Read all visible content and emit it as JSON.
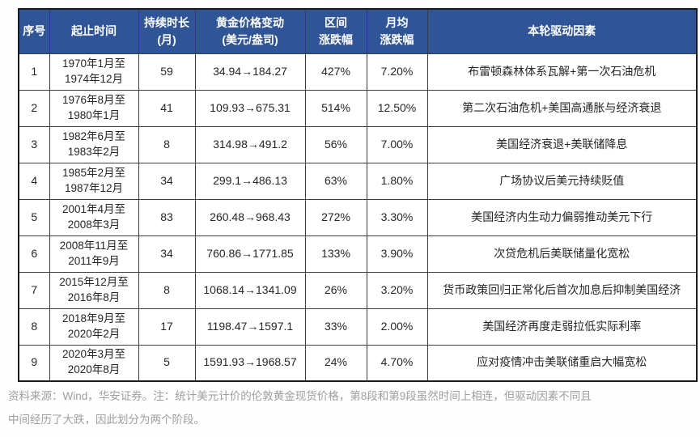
{
  "accent_color": "#2F5597",
  "border_color": "#3d3d3d",
  "table": {
    "headers": [
      {
        "id": "index",
        "label": "序号"
      },
      {
        "id": "period",
        "label": "起止时间"
      },
      {
        "id": "duration",
        "label": "持续时长\n(月)"
      },
      {
        "id": "price_change",
        "label": "黄金价格变动\n(美元/盎司)"
      },
      {
        "id": "interval_change",
        "label": "区间\n涨跌幅"
      },
      {
        "id": "monthly_change",
        "label": "月均\n涨跌幅"
      },
      {
        "id": "driver",
        "label": "本轮驱动因素"
      }
    ],
    "rows": [
      [
        "1",
        "1970年1月至\n1974年12月",
        "59",
        "34.94→184.27",
        "427%",
        "7.20%",
        "布雷顿森林体系瓦解+第一次石油危机"
      ],
      [
        "2",
        "1976年8月至\n1980年1月",
        "41",
        "109.93→675.31",
        "514%",
        "12.50%",
        "第二次石油危机+美国高通胀与经济衰退"
      ],
      [
        "3",
        "1982年6月至\n1983年2月",
        "8",
        "314.98→491.2",
        "56%",
        "7.00%",
        "美国经济衰退+美联储降息"
      ],
      [
        "4",
        "1985年2月至\n1987年12月",
        "34",
        "299.1→486.13",
        "63%",
        "1.80%",
        "广场协议后美元持续贬值"
      ],
      [
        "5",
        "2001年4月至\n2008年3月",
        "83",
        "260.48→968.43",
        "272%",
        "3.30%",
        "美国经济内生动力偏弱推动美元下行"
      ],
      [
        "6",
        "2008年11月至\n2011年9月",
        "34",
        "760.86→1771.85",
        "133%",
        "3.90%",
        "次贷危机后美联储量化宽松"
      ],
      [
        "7",
        "2015年12月至\n2016年8月",
        "8",
        "1068.14→1341.09",
        "26%",
        "3.20%",
        "货币政策回归正常化后首次加息后抑制美国经济"
      ],
      [
        "8",
        "2018年9月至\n2020年2月",
        "17",
        "1198.47→1597.1",
        "33%",
        "2.00%",
        "美国经济再度走弱拉低实际利率"
      ],
      [
        "9",
        "2020年3月至\n2020年8月",
        "5",
        "1591.93→1968.57",
        "24%",
        "4.70%",
        "应对疫情冲击美联储重启大幅宽松"
      ]
    ]
  },
  "footnote": {
    "line1": "资料来源：Wind，华安证券。注：统计美元计价的伦敦黄金现货价格，第8段和第9段虽然时间上相连，但驱动因素不同且",
    "line2": "中间经历了大跌，因此划分为两个阶段。"
  }
}
